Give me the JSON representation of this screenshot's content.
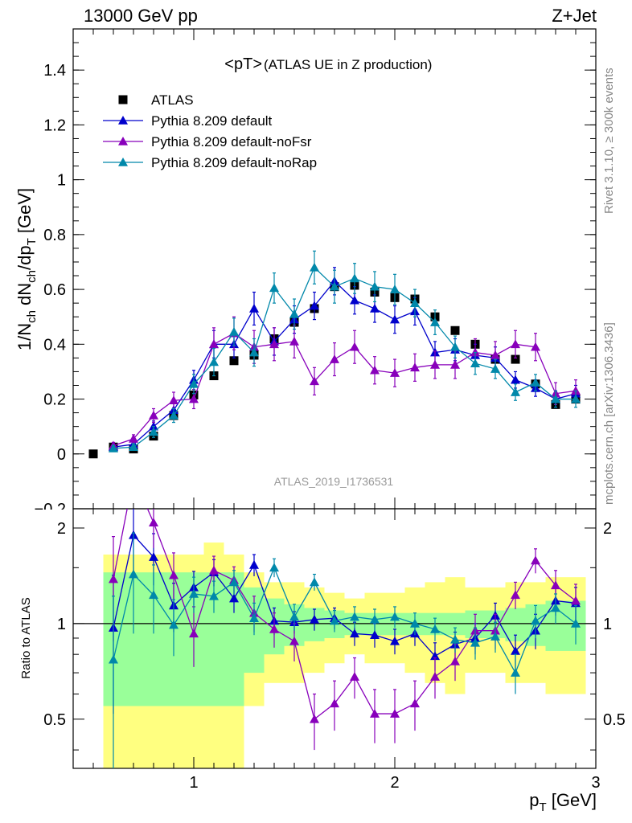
{
  "header": {
    "left": "13000 GeV pp",
    "right": "Z+Jet"
  },
  "side_labels": {
    "rivet": "Rivet 3.1.10, ≥ 300k events",
    "mcplots": "mcplots.cern.ch [arXiv:1306.3436]"
  },
  "chart_data": {
    "type": "scatter",
    "title_main": "<pT>",
    "title_sub": "(ATLAS UE in Z production)",
    "analysis_label": "ATLAS_2019_I1736531",
    "xlabel": "p",
    "xlabel_sub": "T",
    "xlabel_unit": "[GeV]",
    "ylabel": "1/N",
    "ylabel_ratio": "Ratio to ATLAS",
    "xlim": [
      0.4,
      3.0
    ],
    "ylim": [
      -0.2,
      1.55
    ],
    "ratio_ylim": [
      0.35,
      2.3
    ],
    "x_ticks": [
      1,
      2,
      3
    ],
    "y_ticks": [
      0,
      0.2,
      0.4,
      0.6,
      0.8,
      1,
      1.2,
      1.4
    ],
    "y_tick_labels": [
      "0",
      "0.2",
      "0.4",
      "0.6",
      "0.8",
      "1",
      "1.2",
      "1.4"
    ],
    "y_bottom_label": "−0.2",
    "ratio_y_ticks": [
      0.5,
      1,
      2
    ],
    "ratio_y_tick_labels": [
      "0.5",
      "1",
      "2"
    ],
    "legend_position": "top-left",
    "x": [
      0.5,
      0.6,
      0.7,
      0.8,
      0.9,
      1.0,
      1.1,
      1.2,
      1.3,
      1.4,
      1.5,
      1.6,
      1.7,
      1.8,
      1.9,
      2.0,
      2.1,
      2.2,
      2.3,
      2.4,
      2.5,
      2.6,
      2.7,
      2.8,
      2.9
    ],
    "series": [
      {
        "name": "ATLAS",
        "color": "#000000",
        "marker": "square",
        "values": [
          0.0,
          0.025,
          0.018,
          0.065,
          0.14,
          0.215,
          0.285,
          0.34,
          0.36,
          0.42,
          0.48,
          0.53,
          0.61,
          0.615,
          0.59,
          0.57,
          0.565,
          0.5,
          0.45,
          0.4,
          0.345,
          0.345,
          0.255,
          0.18,
          0.2
        ],
        "ratio_band_inner": [
          null,
          0.45,
          0.45,
          0.45,
          0.45,
          0.45,
          0.45,
          0.45,
          0.3,
          0.2,
          0.15,
          0.12,
          0.1,
          0.08,
          0.08,
          0.08,
          0.08,
          0.08,
          0.08,
          0.1,
          0.1,
          0.12,
          0.15,
          0.18,
          0.18
        ],
        "ratio_band_outer": [
          null,
          0.65,
          0.65,
          0.65,
          0.65,
          0.65,
          0.8,
          0.65,
          0.45,
          0.35,
          0.35,
          0.3,
          0.25,
          0.2,
          0.25,
          0.25,
          0.3,
          0.35,
          0.4,
          0.3,
          0.3,
          0.35,
          0.35,
          0.4,
          0.4
        ]
      },
      {
        "name": "Pythia 8.209 default",
        "color": "#0000cc",
        "marker": "triangle",
        "values": [
          null,
          0.025,
          0.035,
          0.1,
          0.16,
          0.27,
          0.4,
          0.4,
          0.53,
          0.41,
          0.49,
          0.54,
          0.63,
          0.56,
          0.53,
          0.49,
          0.52,
          0.37,
          0.38,
          0.36,
          0.35,
          0.27,
          0.24,
          0.2,
          0.22
        ],
        "errors": [
          null,
          0.01,
          0.012,
          0.02,
          0.025,
          0.035,
          0.05,
          0.05,
          0.06,
          0.05,
          0.05,
          0.05,
          0.05,
          0.05,
          0.05,
          0.05,
          0.05,
          0.04,
          0.04,
          0.04,
          0.04,
          0.03,
          0.03,
          0.03,
          0.03
        ],
        "ratio": [
          null,
          0.97,
          1.9,
          1.62,
          1.14,
          1.3,
          1.45,
          1.2,
          1.53,
          1.02,
          1.01,
          1.03,
          1.04,
          0.93,
          0.92,
          0.88,
          0.93,
          0.79,
          0.86,
          0.9,
          1.06,
          0.82,
          0.95,
          1.18,
          1.16
        ],
        "ratio_err": [
          null,
          0.45,
          0.5,
          0.3,
          0.2,
          0.16,
          0.14,
          0.12,
          0.12,
          0.1,
          0.08,
          0.08,
          0.08,
          0.08,
          0.08,
          0.08,
          0.08,
          0.08,
          0.08,
          0.1,
          0.1,
          0.1,
          0.12,
          0.12,
          0.14
        ]
      },
      {
        "name": "Pythia 8.209 default-noFsr",
        "color": "#8800bb",
        "marker": "triangle",
        "values": [
          null,
          0.03,
          0.055,
          0.14,
          0.195,
          0.2,
          0.4,
          0.44,
          0.39,
          0.4,
          0.41,
          0.265,
          0.345,
          0.39,
          0.305,
          0.295,
          0.315,
          0.325,
          0.325,
          0.37,
          0.36,
          0.4,
          0.39,
          0.22,
          0.23
        ],
        "errors": [
          null,
          0.012,
          0.015,
          0.025,
          0.03,
          0.035,
          0.06,
          0.06,
          0.06,
          0.06,
          0.06,
          0.05,
          0.06,
          0.06,
          0.05,
          0.05,
          0.05,
          0.05,
          0.05,
          0.05,
          0.05,
          0.05,
          0.05,
          0.04,
          0.04
        ],
        "ratio": [
          null,
          1.38,
          2.9,
          2.08,
          1.42,
          0.93,
          1.47,
          1.37,
          1.08,
          0.96,
          0.88,
          0.5,
          0.56,
          0.68,
          0.52,
          0.52,
          0.56,
          0.68,
          0.76,
          0.95,
          0.95,
          1.23,
          1.58,
          1.32,
          1.18
        ],
        "ratio_err": [
          null,
          0.5,
          0.6,
          0.35,
          0.25,
          0.2,
          0.16,
          0.14,
          0.14,
          0.12,
          0.12,
          0.1,
          0.1,
          0.1,
          0.1,
          0.1,
          0.1,
          0.1,
          0.1,
          0.12,
          0.12,
          0.12,
          0.14,
          0.15,
          0.15
        ]
      },
      {
        "name": "Pythia 8.209 default-noRap",
        "color": "#0088aa",
        "marker": "triangle",
        "values": [
          null,
          0.02,
          0.025,
          0.08,
          0.14,
          0.255,
          0.335,
          0.445,
          0.37,
          0.605,
          0.51,
          0.68,
          0.61,
          0.64,
          0.61,
          0.6,
          0.55,
          0.48,
          0.39,
          0.33,
          0.31,
          0.225,
          0.26,
          0.2,
          0.2
        ],
        "errors": [
          null,
          0.01,
          0.012,
          0.02,
          0.025,
          0.035,
          0.05,
          0.05,
          0.05,
          0.055,
          0.055,
          0.06,
          0.06,
          0.055,
          0.055,
          0.055,
          0.05,
          0.045,
          0.04,
          0.04,
          0.035,
          0.03,
          0.03,
          0.03,
          0.03
        ],
        "ratio": [
          null,
          0.77,
          1.43,
          1.23,
          0.99,
          1.24,
          1.22,
          1.35,
          1.04,
          1.5,
          1.05,
          1.35,
          1.02,
          1.05,
          1.03,
          1.05,
          1.0,
          0.96,
          0.89,
          0.87,
          0.91,
          0.7,
          1.02,
          1.12,
          1.0
        ],
        "ratio_err": [
          null,
          0.45,
          0.5,
          0.3,
          0.2,
          0.16,
          0.14,
          0.12,
          0.12,
          0.1,
          0.1,
          0.08,
          0.08,
          0.08,
          0.08,
          0.08,
          0.08,
          0.08,
          0.08,
          0.1,
          0.1,
          0.1,
          0.12,
          0.12,
          0.14
        ]
      }
    ]
  }
}
